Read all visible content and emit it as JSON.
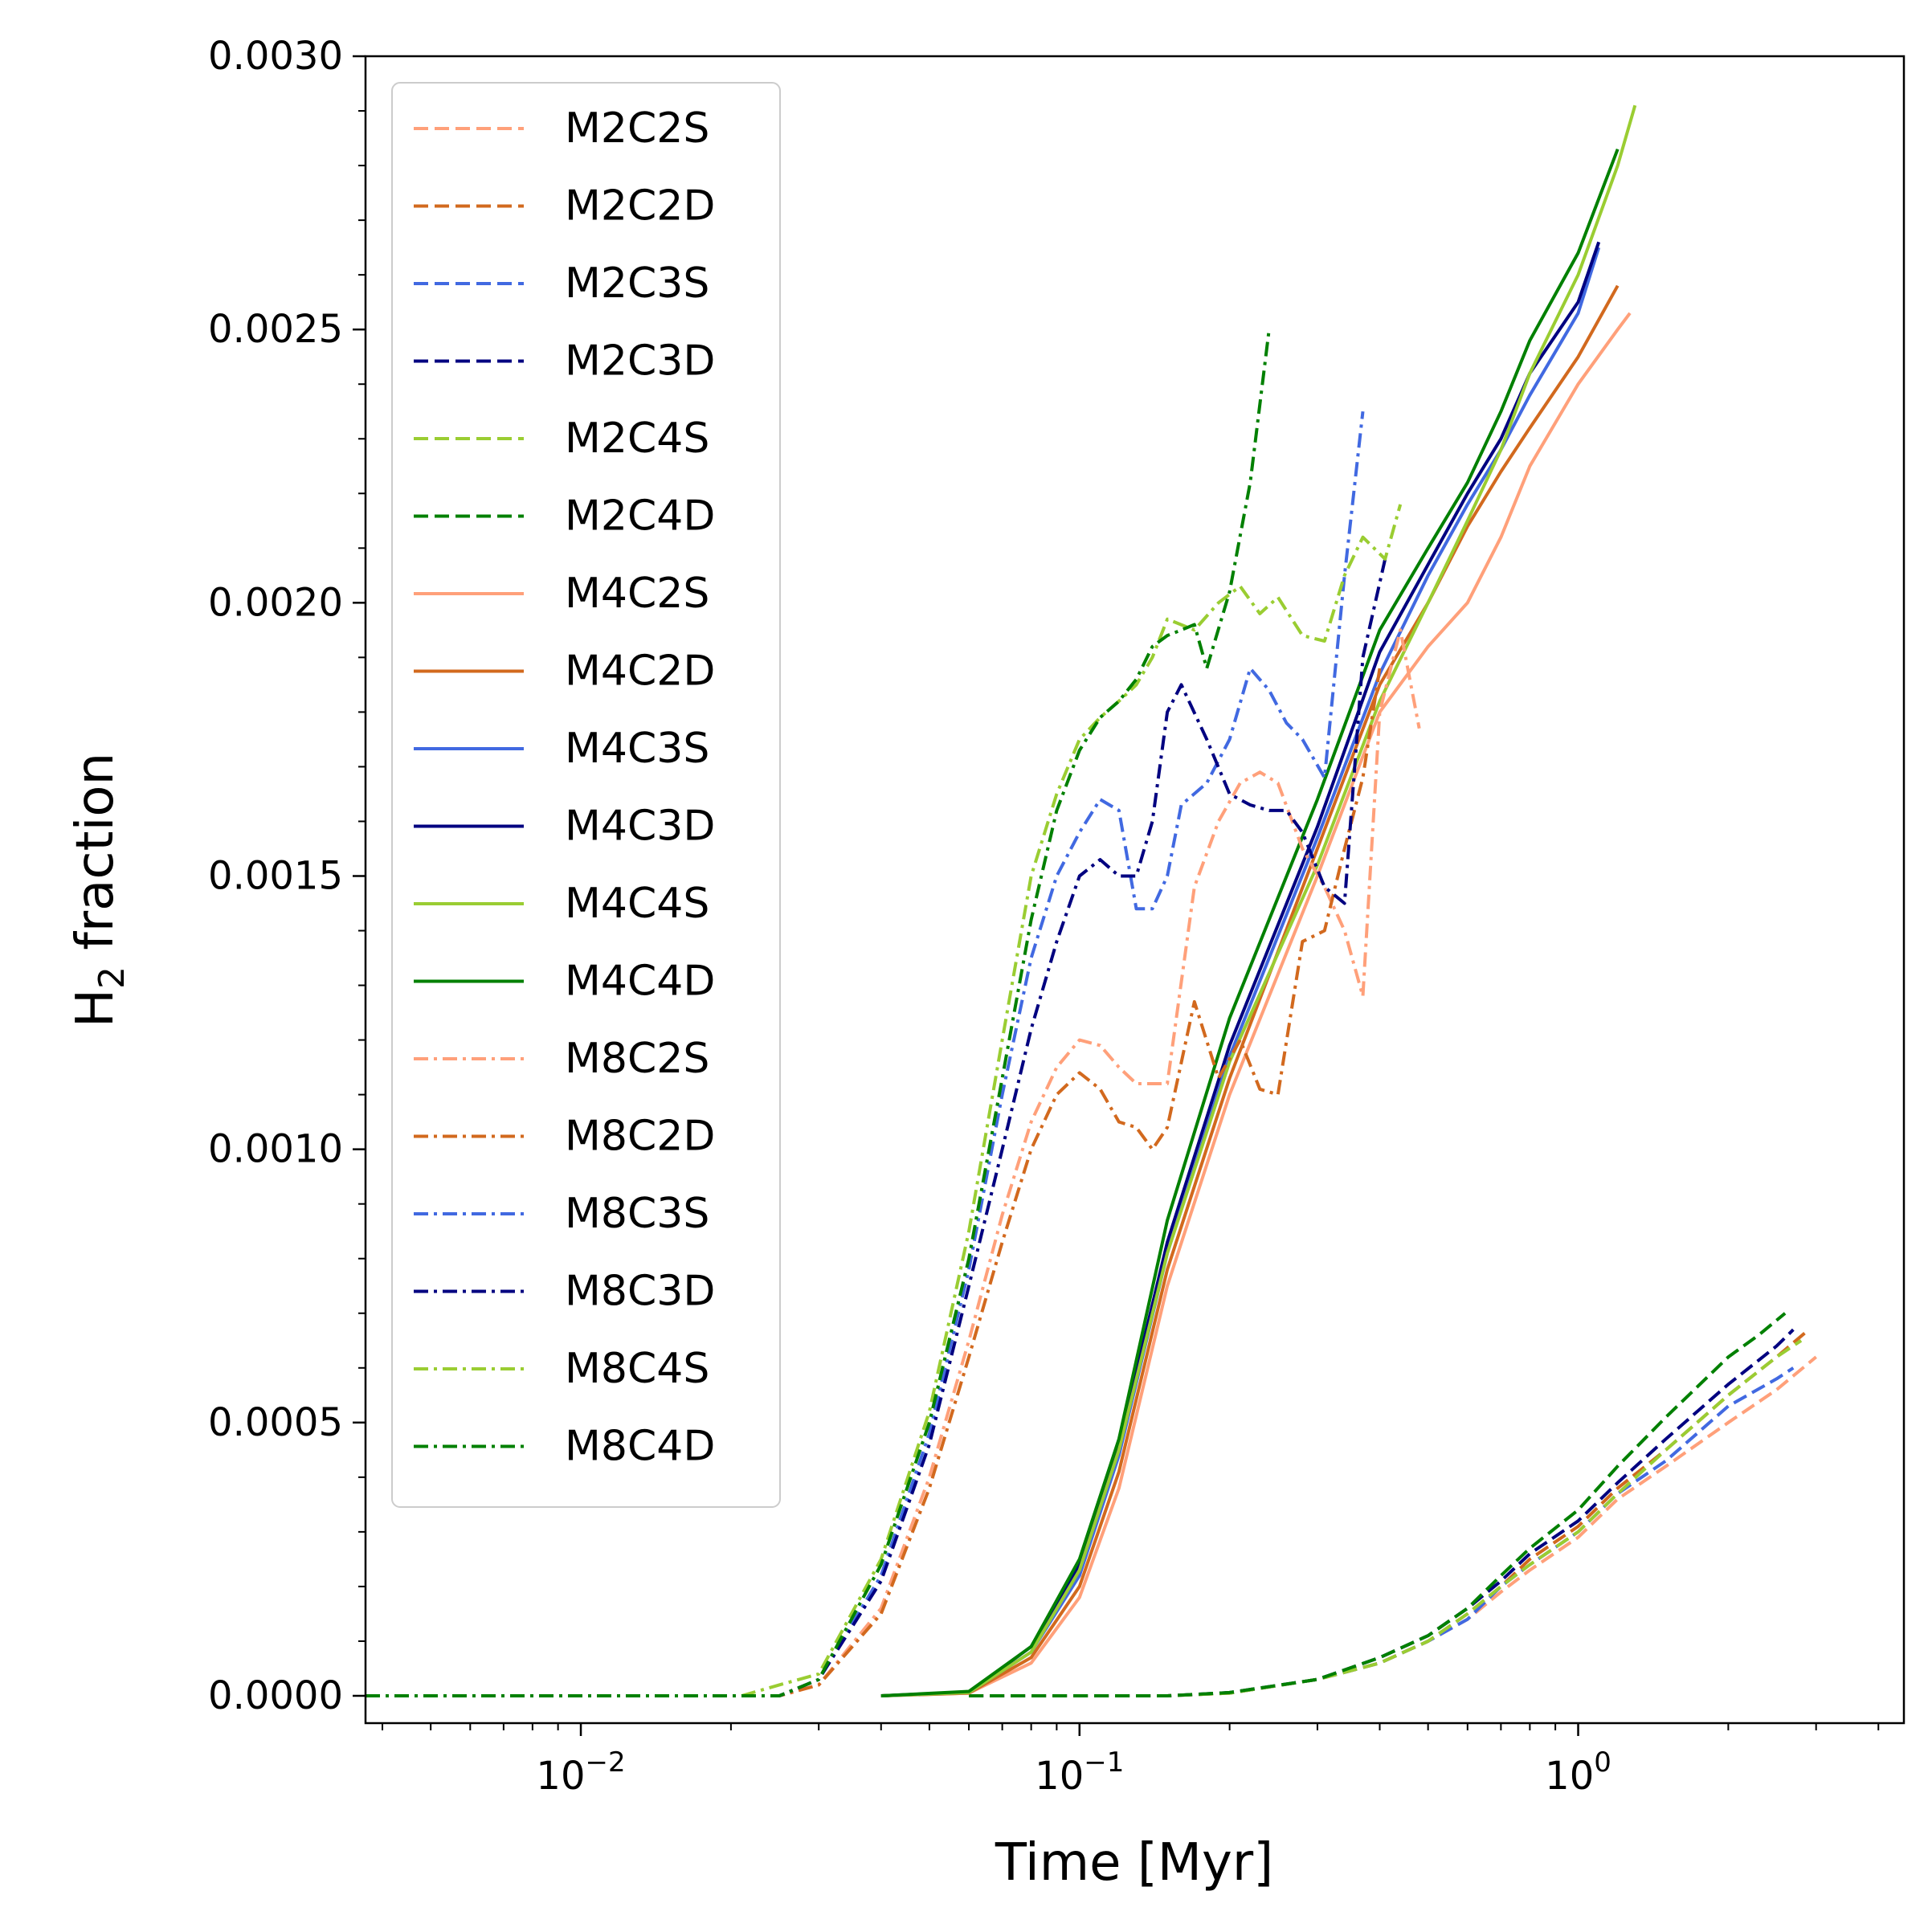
{
  "chart_data": {
    "type": "line",
    "title": "",
    "xlabel": "Time [Myr]",
    "ylabel_main": "H",
    "ylabel_sub": "2",
    "ylabel_rest": " fraction",
    "xscale": "log",
    "xlim": [
      0.0037,
      4.5
    ],
    "ylim": [
      -5e-05,
      0.003
    ],
    "x_major_ticks": [
      {
        "value": 0.01,
        "base": "10",
        "exp": "−2"
      },
      {
        "value": 0.1,
        "base": "10",
        "exp": "−1"
      },
      {
        "value": 1,
        "base": "10",
        "exp": "0"
      }
    ],
    "y_ticks": [
      {
        "value": 0.0,
        "label": "0.0000"
      },
      {
        "value": 0.0005,
        "label": "0.0005"
      },
      {
        "value": 0.001,
        "label": "0.0010"
      },
      {
        "value": 0.0015,
        "label": "0.0015"
      },
      {
        "value": 0.002,
        "label": "0.0020"
      },
      {
        "value": 0.0025,
        "label": "0.0025"
      },
      {
        "value": 0.003,
        "label": "0.0030"
      }
    ],
    "grid": false,
    "legend_position": "top-left",
    "series": [
      {
        "name": "M2C2S",
        "color": "#FFA07A",
        "dash": "dashed",
        "x": [
          0.06,
          0.15,
          0.2,
          0.3,
          0.4,
          0.5,
          0.6,
          0.7,
          0.8,
          1.0,
          1.2,
          1.5,
          2.0,
          2.5,
          3.0
        ],
        "y": [
          0,
          0,
          5e-06,
          3e-05,
          6e-05,
          0.0001,
          0.00014,
          0.00019,
          0.00023,
          0.00029,
          0.00036,
          0.00042,
          0.0005,
          0.00056,
          0.00062
        ]
      },
      {
        "name": "M2C2D",
        "color": "#D2691E",
        "dash": "dashed",
        "x": [
          0.06,
          0.15,
          0.2,
          0.3,
          0.4,
          0.5,
          0.6,
          0.7,
          0.8,
          1.0,
          1.2,
          1.5,
          2.0,
          2.5,
          2.9
        ],
        "y": [
          0,
          0,
          5e-06,
          3e-05,
          6e-05,
          0.0001,
          0.00015,
          0.0002,
          0.00025,
          0.00031,
          0.00038,
          0.00045,
          0.00055,
          0.00062,
          0.00067
        ]
      },
      {
        "name": "M2C3S",
        "color": "#4169E1",
        "dash": "dashed",
        "x": [
          0.06,
          0.15,
          0.2,
          0.3,
          0.4,
          0.5,
          0.6,
          0.7,
          0.8,
          1.0,
          1.2,
          1.5,
          2.0,
          2.5,
          2.7
        ],
        "y": [
          0,
          0,
          5e-06,
          3e-05,
          6e-05,
          0.0001,
          0.00014,
          0.0002,
          0.00024,
          0.0003,
          0.00037,
          0.00043,
          0.00053,
          0.00058,
          0.0006
        ]
      },
      {
        "name": "M2C3D",
        "color": "#000080",
        "dash": "dashed",
        "x": [
          0.06,
          0.15,
          0.2,
          0.3,
          0.4,
          0.5,
          0.6,
          0.7,
          0.8,
          1.0,
          1.2,
          1.5,
          2.0,
          2.5,
          2.7
        ],
        "y": [
          0,
          0,
          6e-06,
          3e-05,
          7e-05,
          0.00011,
          0.00016,
          0.00021,
          0.00026,
          0.00032,
          0.00039,
          0.00047,
          0.00057,
          0.00064,
          0.00067
        ]
      },
      {
        "name": "M2C4S",
        "color": "#9ACD32",
        "dash": "dashed",
        "x": [
          0.06,
          0.15,
          0.2,
          0.3,
          0.4,
          0.5,
          0.6,
          0.7,
          0.8,
          1.0,
          1.2,
          1.5,
          2.0,
          2.5,
          2.8
        ],
        "y": [
          0,
          0,
          5e-06,
          3e-05,
          6e-05,
          0.0001,
          0.00015,
          0.0002,
          0.00024,
          0.0003,
          0.00037,
          0.00045,
          0.00055,
          0.00062,
          0.00065
        ]
      },
      {
        "name": "M2C4D",
        "color": "#008000",
        "dash": "dashed",
        "x": [
          0.06,
          0.15,
          0.2,
          0.3,
          0.4,
          0.5,
          0.6,
          0.7,
          0.8,
          1.0,
          1.2,
          1.5,
          2.0,
          2.3,
          2.6
        ],
        "y": [
          0,
          0,
          6e-06,
          3e-05,
          7e-05,
          0.00011,
          0.00016,
          0.00022,
          0.00027,
          0.00034,
          0.00042,
          0.00051,
          0.00062,
          0.00066,
          0.0007
        ]
      },
      {
        "name": "M4C2S",
        "color": "#FFA07A",
        "dash": "solid",
        "x": [
          0.04,
          0.06,
          0.08,
          0.1,
          0.12,
          0.15,
          0.2,
          0.3,
          0.4,
          0.5,
          0.6,
          0.7,
          0.8,
          1.0,
          1.2,
          1.27
        ],
        "y": [
          0,
          5e-06,
          6e-05,
          0.00018,
          0.00038,
          0.00075,
          0.0011,
          0.0015,
          0.0018,
          0.00192,
          0.002,
          0.00212,
          0.00225,
          0.0024,
          0.0025,
          0.00253
        ]
      },
      {
        "name": "M4C2D",
        "color": "#D2691E",
        "dash": "solid",
        "x": [
          0.04,
          0.06,
          0.08,
          0.1,
          0.12,
          0.15,
          0.2,
          0.3,
          0.4,
          0.5,
          0.6,
          0.7,
          0.8,
          1.0,
          1.2
        ],
        "y": [
          0,
          5e-06,
          7e-05,
          0.0002,
          0.00041,
          0.00078,
          0.00113,
          0.00155,
          0.00185,
          0.002,
          0.00214,
          0.00224,
          0.00232,
          0.00245,
          0.00258
        ]
      },
      {
        "name": "M4C3S",
        "color": "#4169E1",
        "dash": "solid",
        "x": [
          0.04,
          0.06,
          0.08,
          0.1,
          0.12,
          0.15,
          0.2,
          0.3,
          0.4,
          0.5,
          0.6,
          0.7,
          0.8,
          1.0,
          1.1
        ],
        "y": [
          0,
          6e-06,
          8e-05,
          0.00022,
          0.00044,
          0.00081,
          0.00117,
          0.00157,
          0.00187,
          0.00205,
          0.00218,
          0.00228,
          0.00238,
          0.00253,
          0.00265
        ]
      },
      {
        "name": "M4C3D",
        "color": "#000080",
        "dash": "solid",
        "x": [
          0.04,
          0.06,
          0.08,
          0.1,
          0.12,
          0.15,
          0.2,
          0.3,
          0.4,
          0.5,
          0.6,
          0.7,
          0.8,
          1.0,
          1.1
        ],
        "y": [
          0,
          7e-06,
          9e-05,
          0.00024,
          0.00046,
          0.00083,
          0.00119,
          0.00159,
          0.00191,
          0.00207,
          0.0022,
          0.0023,
          0.00242,
          0.00255,
          0.00266
        ]
      },
      {
        "name": "M4C4S",
        "color": "#9ACD32",
        "dash": "solid",
        "x": [
          0.04,
          0.06,
          0.08,
          0.1,
          0.12,
          0.15,
          0.2,
          0.3,
          0.4,
          0.5,
          0.6,
          0.7,
          0.8,
          1.0,
          1.2,
          1.3
        ],
        "y": [
          0,
          6e-06,
          8e-05,
          0.00023,
          0.00045,
          0.00081,
          0.00116,
          0.00152,
          0.00182,
          0.002,
          0.00215,
          0.00228,
          0.00242,
          0.0026,
          0.0028,
          0.00291
        ]
      },
      {
        "name": "M4C4D",
        "color": "#008000",
        "dash": "solid",
        "x": [
          0.04,
          0.06,
          0.08,
          0.1,
          0.12,
          0.15,
          0.2,
          0.3,
          0.4,
          0.5,
          0.6,
          0.7,
          0.8,
          1.0,
          1.2
        ],
        "y": [
          0,
          8e-06,
          9e-05,
          0.00025,
          0.00047,
          0.00087,
          0.00124,
          0.00164,
          0.00195,
          0.0021,
          0.00222,
          0.00235,
          0.00248,
          0.00264,
          0.00283
        ]
      },
      {
        "name": "M8C2S",
        "color": "#FFA07A",
        "dash": "dashdot",
        "x": [
          0.0037,
          0.025,
          0.03,
          0.04,
          0.05,
          0.06,
          0.07,
          0.08,
          0.09,
          0.1,
          0.11,
          0.12,
          0.13,
          0.15,
          0.17,
          0.19,
          0.21,
          0.23,
          0.25,
          0.28,
          0.31,
          0.34,
          0.37,
          0.4,
          0.44,
          0.48
        ],
        "y": [
          0,
          0,
          2e-05,
          0.00016,
          0.0004,
          0.00065,
          0.00088,
          0.00105,
          0.00115,
          0.0012,
          0.00119,
          0.00115,
          0.00112,
          0.00112,
          0.00148,
          0.0016,
          0.00167,
          0.00169,
          0.00167,
          0.00155,
          0.00148,
          0.0014,
          0.00128,
          0.0018,
          0.00195,
          0.00177
        ]
      },
      {
        "name": "M8C2D",
        "color": "#D2691E",
        "dash": "dashdot",
        "x": [
          0.0037,
          0.025,
          0.03,
          0.04,
          0.05,
          0.06,
          0.07,
          0.08,
          0.09,
          0.1,
          0.11,
          0.12,
          0.13,
          0.14,
          0.15,
          0.17,
          0.19,
          0.21,
          0.23,
          0.25,
          0.28,
          0.31,
          0.34,
          0.37,
          0.4
        ],
        "y": [
          0,
          0,
          2e-05,
          0.00015,
          0.00038,
          0.00062,
          0.00083,
          0.001,
          0.0011,
          0.00114,
          0.00111,
          0.00105,
          0.00104,
          0.001,
          0.00104,
          0.00127,
          0.00113,
          0.0012,
          0.00111,
          0.0011,
          0.00138,
          0.0014,
          0.00155,
          0.00168,
          0.00188
        ]
      },
      {
        "name": "M8C3S",
        "color": "#4169E1",
        "dash": "dashdot",
        "x": [
          0.0037,
          0.025,
          0.03,
          0.04,
          0.05,
          0.06,
          0.07,
          0.08,
          0.09,
          0.1,
          0.11,
          0.12,
          0.13,
          0.14,
          0.15,
          0.16,
          0.18,
          0.2,
          0.22,
          0.24,
          0.26,
          0.28,
          0.31,
          0.34,
          0.37
        ],
        "y": [
          0,
          0,
          3e-05,
          0.00022,
          0.00048,
          0.00078,
          0.0011,
          0.00135,
          0.0015,
          0.00158,
          0.00164,
          0.00162,
          0.00144,
          0.00144,
          0.0015,
          0.00163,
          0.00167,
          0.00175,
          0.00188,
          0.00184,
          0.00178,
          0.00175,
          0.00168,
          0.00205,
          0.00235
        ]
      },
      {
        "name": "M8C3D",
        "color": "#000080",
        "dash": "dashdot",
        "x": [
          0.0037,
          0.025,
          0.03,
          0.04,
          0.05,
          0.06,
          0.07,
          0.08,
          0.09,
          0.1,
          0.11,
          0.12,
          0.13,
          0.14,
          0.15,
          0.16,
          0.18,
          0.2,
          0.22,
          0.24,
          0.26,
          0.28,
          0.31,
          0.34,
          0.37,
          0.41
        ],
        "y": [
          0,
          0,
          3e-05,
          0.00021,
          0.00046,
          0.00075,
          0.001,
          0.00122,
          0.00138,
          0.0015,
          0.00153,
          0.0015,
          0.0015,
          0.0016,
          0.0018,
          0.00185,
          0.00175,
          0.00165,
          0.00163,
          0.00162,
          0.00162,
          0.00158,
          0.00148,
          0.00145,
          0.0019,
          0.00208
        ]
      },
      {
        "name": "M8C4S",
        "color": "#9ACD32",
        "dash": "dashdot",
        "x": [
          0.0037,
          0.021,
          0.025,
          0.03,
          0.04,
          0.05,
          0.06,
          0.07,
          0.08,
          0.09,
          0.1,
          0.11,
          0.12,
          0.13,
          0.14,
          0.15,
          0.17,
          0.19,
          0.21,
          0.23,
          0.25,
          0.28,
          0.31,
          0.34,
          0.37,
          0.41,
          0.44
        ],
        "y": [
          0,
          0,
          2e-05,
          4e-05,
          0.00025,
          0.00052,
          0.00085,
          0.0012,
          0.0015,
          0.00165,
          0.00175,
          0.00179,
          0.00182,
          0.00185,
          0.0019,
          0.00197,
          0.00195,
          0.002,
          0.00203,
          0.00198,
          0.00201,
          0.00194,
          0.00193,
          0.00205,
          0.00212,
          0.00208,
          0.00218
        ]
      },
      {
        "name": "M8C4D",
        "color": "#008000",
        "dash": "dashdot",
        "x": [
          0.0037,
          0.025,
          0.03,
          0.04,
          0.05,
          0.06,
          0.07,
          0.08,
          0.09,
          0.1,
          0.11,
          0.12,
          0.13,
          0.14,
          0.15,
          0.16,
          0.17,
          0.18,
          0.2,
          0.22,
          0.24
        ],
        "y": [
          0,
          0,
          3e-05,
          0.00024,
          0.0005,
          0.0008,
          0.00113,
          0.00142,
          0.00162,
          0.00173,
          0.00179,
          0.00182,
          0.00186,
          0.00192,
          0.00194,
          0.00195,
          0.00196,
          0.00188,
          0.00202,
          0.00222,
          0.0025
        ]
      }
    ]
  }
}
